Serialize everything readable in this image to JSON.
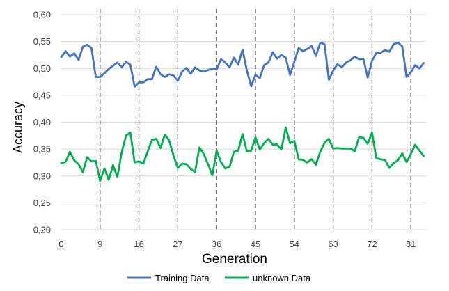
{
  "chart_data": {
    "type": "line",
    "xlabel": "Generation",
    "ylabel": "Accuracy",
    "x_ticks": [
      "0",
      "9",
      "18",
      "27",
      "36",
      "45",
      "54",
      "63",
      "72",
      "81"
    ],
    "x_tick_values": [
      0,
      9,
      18,
      27,
      36,
      45,
      54,
      63,
      72,
      81
    ],
    "y_ticks": [
      "0,20",
      "0,25",
      "0,30",
      "0,35",
      "0,40",
      "0,45",
      "0,50",
      "0,55",
      "0,60"
    ],
    "y_tick_values": [
      0.2,
      0.25,
      0.3,
      0.35,
      0.4,
      0.45,
      0.5,
      0.55,
      0.6
    ],
    "xlim": [
      0,
      90
    ],
    "ylim": [
      0.2,
      0.6
    ],
    "grid": "horizontal",
    "vertical_markers": [
      9,
      18,
      27,
      36,
      45,
      54,
      63,
      72,
      81
    ],
    "legend_position": "bottom",
    "x": [
      0,
      1,
      2,
      3,
      4,
      5,
      6,
      7,
      8,
      9,
      10,
      11,
      12,
      13,
      14,
      15,
      16,
      17,
      18,
      19,
      20,
      21,
      22,
      23,
      24,
      25,
      26,
      27,
      28,
      29,
      30,
      31,
      32,
      33,
      34,
      35,
      36,
      37,
      38,
      39,
      40,
      41,
      42,
      43,
      44,
      45,
      46,
      47,
      48,
      49,
      50,
      51,
      52,
      53,
      54,
      55,
      56,
      57,
      58,
      59,
      60,
      61,
      62,
      63,
      64,
      65,
      66,
      67,
      68,
      69,
      70,
      71,
      72,
      73,
      74,
      75,
      76,
      77,
      78,
      79,
      80,
      81,
      82,
      83,
      84
    ],
    "series": [
      {
        "name": "Training Data",
        "color": "#4472C4",
        "values": [
          0.521,
          0.532,
          0.522,
          0.528,
          0.516,
          0.54,
          0.544,
          0.538,
          0.484,
          0.484,
          0.491,
          0.499,
          0.505,
          0.511,
          0.502,
          0.512,
          0.507,
          0.466,
          0.474,
          0.474,
          0.48,
          0.48,
          0.503,
          0.489,
          0.484,
          0.489,
          0.487,
          0.477,
          0.494,
          0.501,
          0.49,
          0.502,
          0.496,
          0.494,
          0.497,
          0.499,
          0.498,
          0.517,
          0.511,
          0.502,
          0.52,
          0.507,
          0.535,
          0.496,
          0.467,
          0.488,
          0.482,
          0.506,
          0.511,
          0.53,
          0.518,
          0.525,
          0.52,
          0.488,
          0.512,
          0.538,
          0.532,
          0.536,
          0.542,
          0.523,
          0.548,
          0.545,
          0.479,
          0.496,
          0.508,
          0.502,
          0.511,
          0.515,
          0.522,
          0.517,
          0.518,
          0.483,
          0.514,
          0.529,
          0.529,
          0.534,
          0.531,
          0.545,
          0.548,
          0.541,
          0.484,
          0.493,
          0.506,
          0.5,
          0.51
        ]
      },
      {
        "name": "unknown Data",
        "color": "#00B050",
        "values": [
          0.324,
          0.326,
          0.345,
          0.329,
          0.322,
          0.307,
          0.335,
          0.327,
          0.328,
          0.291,
          0.314,
          0.293,
          0.32,
          0.298,
          0.344,
          0.375,
          0.381,
          0.325,
          0.327,
          0.323,
          0.345,
          0.367,
          0.369,
          0.352,
          0.377,
          0.366,
          0.338,
          0.315,
          0.323,
          0.322,
          0.313,
          0.307,
          0.353,
          0.341,
          0.322,
          0.301,
          0.347,
          0.326,
          0.314,
          0.317,
          0.345,
          0.347,
          0.378,
          0.346,
          0.347,
          0.372,
          0.349,
          0.361,
          0.369,
          0.358,
          0.359,
          0.349,
          0.39,
          0.361,
          0.365,
          0.331,
          0.33,
          0.325,
          0.331,
          0.321,
          0.345,
          0.362,
          0.369,
          0.351,
          0.352,
          0.351,
          0.351,
          0.351,
          0.346,
          0.372,
          0.371,
          0.36,
          0.381,
          0.333,
          0.331,
          0.33,
          0.315,
          0.324,
          0.329,
          0.342,
          0.326,
          0.341,
          0.358,
          0.347,
          0.337
        ]
      }
    ]
  }
}
